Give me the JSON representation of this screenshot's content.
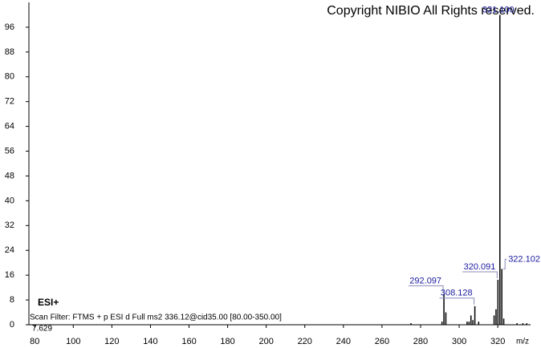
{
  "chart_data": {
    "type": "spectrum",
    "copyright": "Copyright NIBIO All Rights reserved.",
    "ion_mode": "ESI+",
    "scan_filter": "Scan Filter: FTMS + p ESI d Full ms2 336.12@cid35.00 [80.00-350.00]",
    "scale_label": "7.629",
    "x_label": "m/z",
    "x": [
      275.0,
      291.1,
      292.097,
      293.1,
      304.1,
      305.1,
      306.1,
      307.1,
      308.128,
      310.1,
      318.1,
      319.1,
      320.091,
      321.1,
      322.102,
      323.1,
      330.0,
      333.0,
      335.0
    ],
    "values": [
      0.5,
      1,
      10,
      4,
      1,
      1,
      3,
      1.5,
      6,
      1,
      3,
      5,
      14.5,
      100,
      18,
      2,
      0.5,
      0.5,
      0.5
    ],
    "x_labels": [
      null,
      null,
      "292.097",
      null,
      null,
      null,
      null,
      null,
      "308.128",
      null,
      null,
      null,
      "320.091",
      "321.100",
      "322.102",
      null,
      null,
      null,
      null
    ],
    "color": "#000000",
    "label_color": "#1a1aa0",
    "xlim": [
      77,
      337
    ],
    "ylim": [
      0,
      104
    ],
    "xticks": [
      80,
      100,
      120,
      140,
      160,
      180,
      200,
      220,
      240,
      260,
      280,
      300,
      320
    ],
    "yticks": [
      0,
      8,
      16,
      24,
      32,
      40,
      48,
      56,
      64,
      72,
      80,
      88,
      96
    ]
  }
}
